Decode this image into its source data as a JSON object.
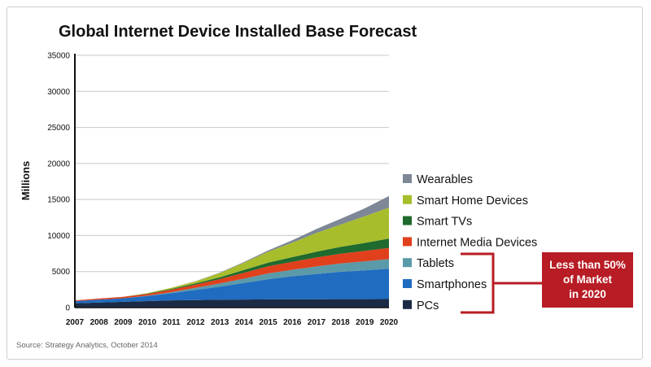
{
  "chart_data": {
    "type": "area",
    "stacked": true,
    "title": "Global Internet Device Installed Base Forecast",
    "ylabel": "Millions",
    "xlabel": "",
    "ylim": [
      0,
      35000
    ],
    "yticks": [
      0,
      5000,
      10000,
      15000,
      20000,
      25000,
      30000,
      35000
    ],
    "x": [
      "2007",
      "2008",
      "2009",
      "2010",
      "2011",
      "2012",
      "2013",
      "2014",
      "2015",
      "2016",
      "2017",
      "2018",
      "2019",
      "2020"
    ],
    "grid": "horizontal",
    "legend_position": "right",
    "series": [
      {
        "name": "PCs",
        "color": "#1b2b45",
        "values": [
          600,
          700,
          800,
          900,
          1000,
          1050,
          1100,
          1120,
          1140,
          1150,
          1160,
          1170,
          1175,
          1180
        ]
      },
      {
        "name": "Smartphones",
        "color": "#1f6cc0",
        "values": [
          300,
          400,
          500,
          700,
          1000,
          1400,
          1800,
          2300,
          2800,
          3200,
          3500,
          3800,
          4000,
          4200
        ]
      },
      {
        "name": "Tablets",
        "color": "#5b9aa8",
        "values": [
          0,
          0,
          0,
          50,
          150,
          300,
          450,
          600,
          800,
          900,
          1050,
          1150,
          1250,
          1350
        ]
      },
      {
        "name": "Internet Media Devices",
        "color": "#e0401c",
        "values": [
          100,
          150,
          200,
          250,
          350,
          450,
          600,
          800,
          1000,
          1100,
          1250,
          1350,
          1450,
          1550
        ]
      },
      {
        "name": "Smart TVs",
        "color": "#1f6a2e",
        "values": [
          0,
          0,
          0,
          50,
          100,
          150,
          250,
          400,
          500,
          650,
          800,
          950,
          1100,
          1300
        ]
      },
      {
        "name": "Smart Home Devices",
        "color": "#a8bd2c",
        "values": [
          0,
          0,
          0,
          50,
          150,
          300,
          600,
          1000,
          1500,
          2000,
          2600,
          3100,
          3700,
          4300
        ]
      },
      {
        "name": "Wearables",
        "color": "#7d8796",
        "values": [
          0,
          0,
          0,
          0,
          0,
          20,
          50,
          100,
          200,
          350,
          550,
          800,
          1100,
          1600
        ]
      }
    ],
    "callout": {
      "text_lines": [
        "Less than 50%",
        "of Market",
        "in 2020"
      ],
      "color": "#b81c24"
    },
    "source": "Source: Strategy Analytics, October 2014"
  }
}
